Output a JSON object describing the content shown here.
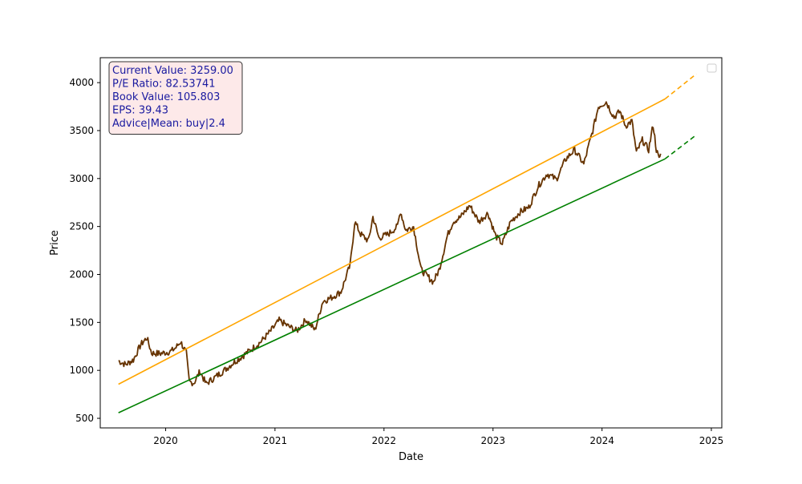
{
  "chart_data": {
    "type": "line",
    "xlabel": "Date",
    "ylabel": "Price",
    "x_ticks": [
      "2020",
      "2021",
      "2022",
      "2023",
      "2024",
      "2025"
    ],
    "y_ticks": [
      500,
      1000,
      1500,
      2000,
      2500,
      3000,
      3500,
      4000
    ],
    "xlim": [
      "2019-05-27",
      "2025-02-05"
    ],
    "ylim": [
      400,
      4260
    ],
    "legend": "top-right (empty)",
    "grid": false,
    "info_box": [
      "Current Value: 3259.00",
      "P/E Ratio: 82.53741",
      "Book Value: 105.803",
      "EPS: 39.43",
      "Advice|Mean: buy|2.4"
    ],
    "colors": {
      "price": "#663300",
      "upper_trend": "#ffa500",
      "lower_trend": "#008000",
      "info_text": "#1a1aa0",
      "info_bg": "#fde9e9"
    },
    "series": [
      {
        "style": "price-line",
        "points": [
          [
            "2019-07-27",
            1100
          ],
          [
            "2019-08-20",
            1060
          ],
          [
            "2019-09-15",
            1110
          ],
          [
            "2019-10-10",
            1270
          ],
          [
            "2019-10-30",
            1340
          ],
          [
            "2019-11-15",
            1180
          ],
          [
            "2019-12-15",
            1175
          ],
          [
            "2020-01-20",
            1200
          ],
          [
            "2020-02-05",
            1240
          ],
          [
            "2020-02-20",
            1300
          ],
          [
            "2020-03-10",
            1180
          ],
          [
            "2020-03-20",
            880
          ],
          [
            "2020-04-05",
            870
          ],
          [
            "2020-04-25",
            990
          ],
          [
            "2020-05-15",
            860
          ],
          [
            "2020-06-15",
            930
          ],
          [
            "2020-07-15",
            1000
          ],
          [
            "2020-08-15",
            1080
          ],
          [
            "2020-09-15",
            1150
          ],
          [
            "2020-10-15",
            1220
          ],
          [
            "2020-11-15",
            1300
          ],
          [
            "2020-12-15",
            1400
          ],
          [
            "2021-01-15",
            1520
          ],
          [
            "2021-02-15",
            1460
          ],
          [
            "2021-03-15",
            1410
          ],
          [
            "2021-04-15",
            1530
          ],
          [
            "2021-05-15",
            1420
          ],
          [
            "2021-06-10",
            1720
          ],
          [
            "2021-07-10",
            1760
          ],
          [
            "2021-08-10",
            1820
          ],
          [
            "2021-09-10",
            2100
          ],
          [
            "2021-09-25",
            2550
          ],
          [
            "2021-10-15",
            2420
          ],
          [
            "2021-11-10",
            2350
          ],
          [
            "2021-11-25",
            2600
          ],
          [
            "2021-12-15",
            2380
          ],
          [
            "2022-01-15",
            2420
          ],
          [
            "2022-02-15",
            2500
          ],
          [
            "2022-02-25",
            2660
          ],
          [
            "2022-03-15",
            2460
          ],
          [
            "2022-04-10",
            2500
          ],
          [
            "2022-05-05",
            2050
          ],
          [
            "2022-06-15",
            1920
          ],
          [
            "2022-07-05",
            2050
          ],
          [
            "2022-08-01",
            2400
          ],
          [
            "2022-08-20",
            2550
          ],
          [
            "2022-09-15",
            2600
          ],
          [
            "2022-10-15",
            2720
          ],
          [
            "2022-11-15",
            2550
          ],
          [
            "2022-12-15",
            2640
          ],
          [
            "2023-01-10",
            2400
          ],
          [
            "2023-02-01",
            2320
          ],
          [
            "2023-03-01",
            2550
          ],
          [
            "2023-04-01",
            2650
          ],
          [
            "2023-05-01",
            2700
          ],
          [
            "2023-06-01",
            2920
          ],
          [
            "2023-07-01",
            3050
          ],
          [
            "2023-08-01",
            2990
          ],
          [
            "2023-09-01",
            3200
          ],
          [
            "2023-10-01",
            3300
          ],
          [
            "2023-11-01",
            3150
          ],
          [
            "2023-12-01",
            3500
          ],
          [
            "2023-12-20",
            3750
          ],
          [
            "2024-01-15",
            3800
          ],
          [
            "2024-02-10",
            3640
          ],
          [
            "2024-03-01",
            3700
          ],
          [
            "2024-03-20",
            3550
          ],
          [
            "2024-04-10",
            3600
          ],
          [
            "2024-04-25",
            3270
          ],
          [
            "2024-05-15",
            3400
          ],
          [
            "2024-06-05",
            3300
          ],
          [
            "2024-06-20",
            3560
          ],
          [
            "2024-07-01",
            3300
          ],
          [
            "2024-07-10",
            3200
          ],
          [
            "2024-07-15",
            3259
          ]
        ]
      },
      {
        "style": "upper-trend",
        "points": [
          [
            "2019-07-27",
            855
          ],
          [
            "2024-07-30",
            3830
          ]
        ],
        "projection": [
          [
            "2024-07-30",
            3830
          ],
          [
            "2024-11-12",
            4090
          ]
        ]
      },
      {
        "style": "lower-trend",
        "points": [
          [
            "2019-07-27",
            558
          ],
          [
            "2024-07-30",
            3205
          ]
        ],
        "projection": [
          [
            "2024-07-30",
            3205
          ],
          [
            "2024-11-12",
            3455
          ]
        ]
      }
    ]
  }
}
